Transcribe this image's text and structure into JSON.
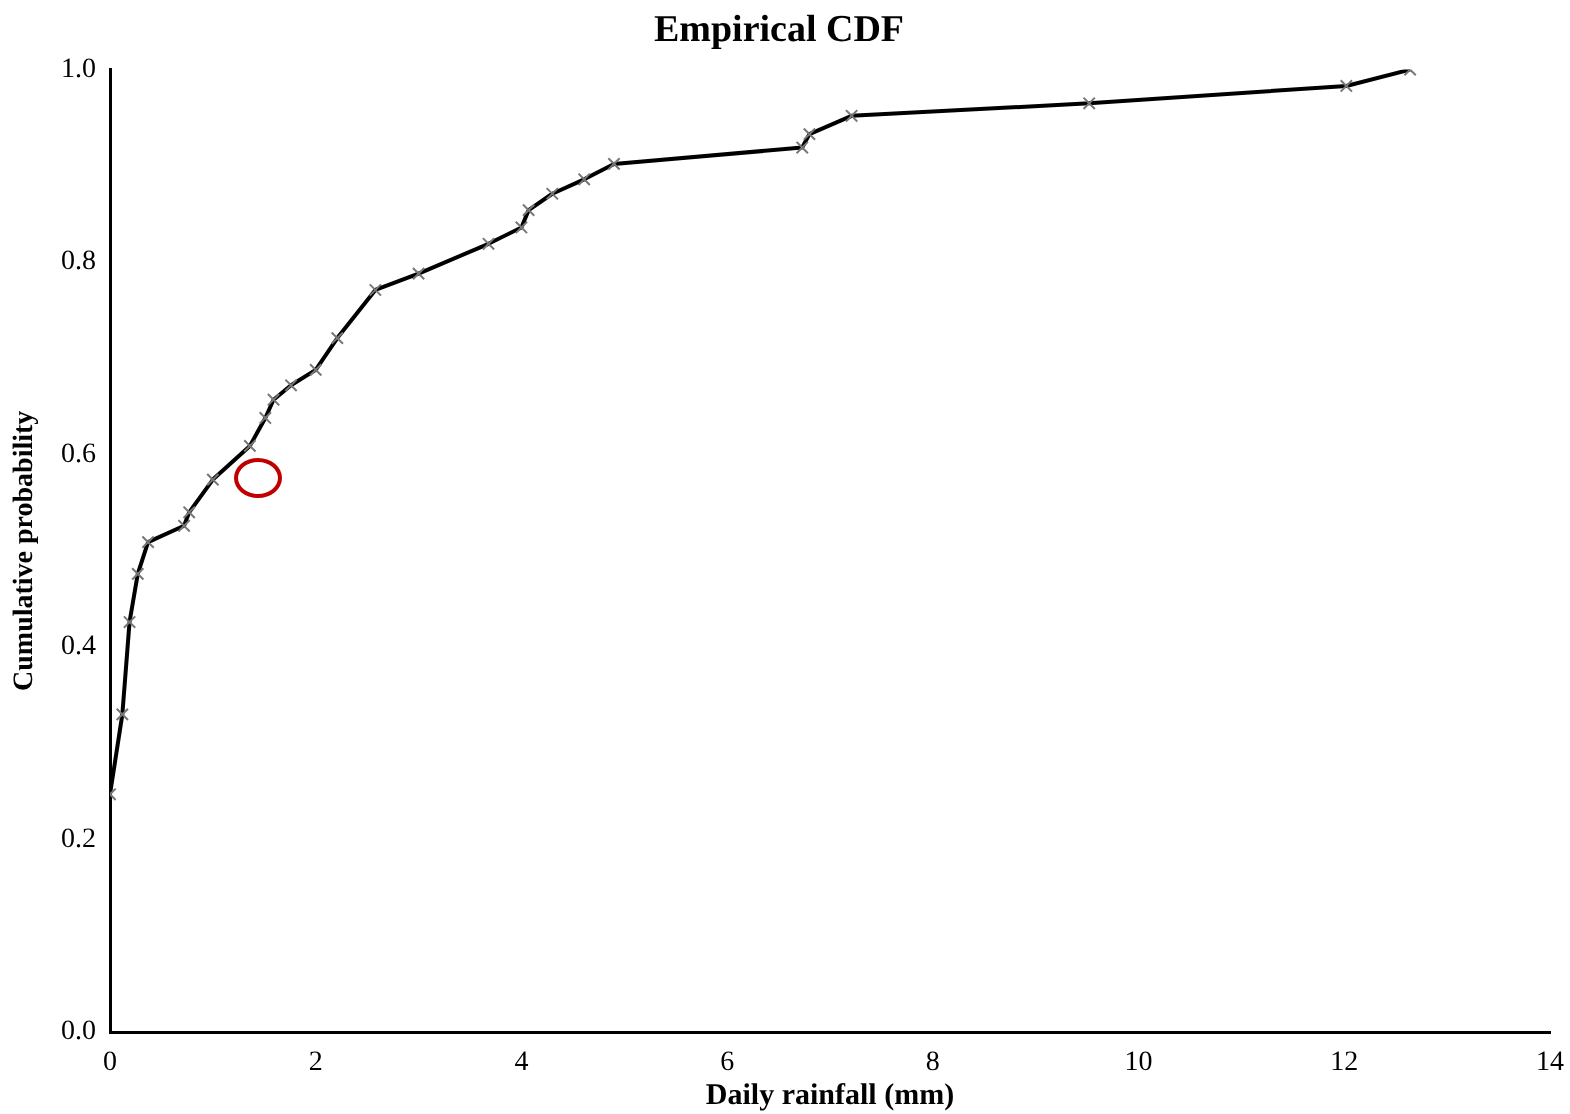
{
  "chart_data": {
    "type": "line",
    "title": "Empirical CDF",
    "xlabel": "Daily rainfall (mm)",
    "ylabel": "Cumulative probability",
    "xlim": [
      0,
      14
    ],
    "xticks": [
      0,
      2,
      4,
      6,
      8,
      10,
      12,
      14
    ],
    "ylim": [
      0,
      1
    ],
    "yticks": [
      {
        "value": 0,
        "label": "0.0"
      },
      {
        "value": 0.2,
        "label": "0.2"
      },
      {
        "value": 0.4,
        "label": "0.4"
      },
      {
        "value": 0.6,
        "label": "0.6"
      },
      {
        "value": 0.8,
        "label": "0.8"
      },
      {
        "value": 1,
        "label": "1.0"
      }
    ],
    "grid": false,
    "legend": false,
    "marker": "cross",
    "line_style": "solid",
    "series": [
      {
        "color": "#000000",
        "x": [
          0,
          0.12,
          0.19,
          0.27,
          0.37,
          0.72,
          0.77,
          1.0,
          1.36,
          1.51,
          1.59,
          1.76,
          2.0,
          2.21,
          2.58,
          3.0,
          3.68,
          4.0,
          4.07,
          4.3,
          4.61,
          4.9,
          6.73,
          6.8,
          7.21,
          9.52,
          12.02,
          12.64
        ],
        "values": [
          0.247,
          0.33,
          0.426,
          0.476,
          0.509,
          0.526,
          0.54,
          0.574,
          0.609,
          0.638,
          0.657,
          0.672,
          0.688,
          0.721,
          0.771,
          0.788,
          0.819,
          0.836,
          0.854,
          0.871,
          0.886,
          0.902,
          0.919,
          0.933,
          0.952,
          0.965,
          0.983,
          1.0
        ]
      }
    ]
  }
}
